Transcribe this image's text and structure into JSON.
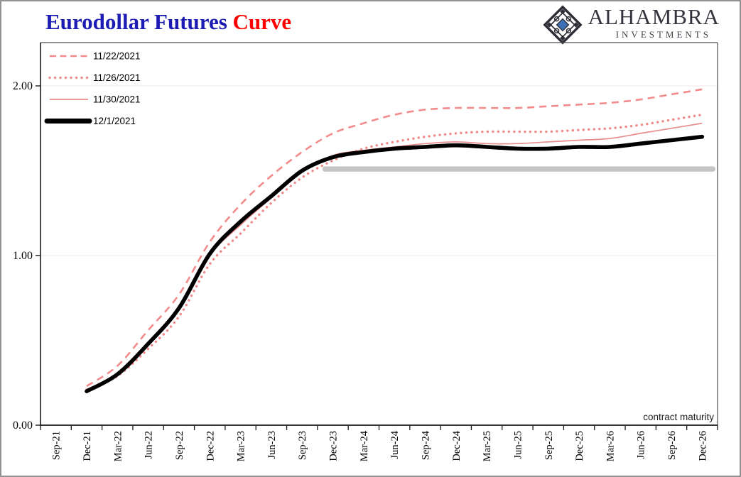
{
  "header": {
    "title_main": "Eurodollar Futures ",
    "title_accent": "Curve",
    "title_main_color": "#1c1cb4",
    "title_accent_color": "#fe0000"
  },
  "logo": {
    "name": "ALHAMBRA",
    "subtitle": "INVESTMENTS",
    "icon": "diamond-lattice-icon",
    "icon_accent_color": "#3e6fb5",
    "icon_line_color": "#2d2d36"
  },
  "axis_note": "contract maturity",
  "chart_data": {
    "type": "line",
    "title": "Eurodollar Futures Curve",
    "xlabel": "contract maturity",
    "ylabel": "",
    "ylim": [
      0,
      2.25
    ],
    "yticks": [
      0,
      1,
      2
    ],
    "ytick_labels": [
      "0.00",
      "1.00",
      "2.00"
    ],
    "grid": "faint horizontal gridlines at 1.00 and 2.00",
    "legend_position": "top-left inside plot",
    "x_categories": [
      "Sep-21",
      "Dec-21",
      "Mar-22",
      "Jun-22",
      "Sep-22",
      "Dec-22",
      "Mar-23",
      "Jun-23",
      "Sep-23",
      "Dec-23",
      "Mar-24",
      "Jun-24",
      "Sep-24",
      "Dec-24",
      "Mar-25",
      "Jun-25",
      "Sep-25",
      "Dec-25",
      "Mar-26",
      "Jun-26",
      "Sep-26",
      "Dec-26"
    ],
    "series_start_category": "Dec-21",
    "series": [
      {
        "name": "11/22/2021",
        "style": "dashed",
        "color": "#f28b8b",
        "values": [
          0.23,
          0.35,
          0.56,
          0.77,
          1.08,
          1.3,
          1.47,
          1.61,
          1.72,
          1.78,
          1.83,
          1.86,
          1.87,
          1.87,
          1.87,
          1.88,
          1.89,
          1.9,
          1.92,
          1.95,
          1.98
        ]
      },
      {
        "name": "11/26/2021",
        "style": "dotted",
        "color": "#ef8a8a",
        "values": [
          0.21,
          0.29,
          0.45,
          0.64,
          0.95,
          1.13,
          1.31,
          1.46,
          1.56,
          1.63,
          1.67,
          1.7,
          1.72,
          1.73,
          1.73,
          1.73,
          1.74,
          1.75,
          1.77,
          1.8,
          1.83
        ]
      },
      {
        "name": "11/30/2021",
        "style": "solid-thin",
        "color": "#e88d8d",
        "values": [
          0.21,
          0.3,
          0.47,
          0.68,
          1.0,
          1.18,
          1.34,
          1.49,
          1.59,
          1.62,
          1.64,
          1.66,
          1.67,
          1.66,
          1.66,
          1.67,
          1.68,
          1.69,
          1.72,
          1.75,
          1.78
        ]
      },
      {
        "name": "12/1/2021",
        "style": "solid-thick",
        "color": "#000000",
        "values": [
          0.2,
          0.3,
          0.48,
          0.69,
          1.01,
          1.2,
          1.35,
          1.5,
          1.58,
          1.61,
          1.63,
          1.64,
          1.65,
          1.64,
          1.63,
          1.63,
          1.64,
          1.64,
          1.66,
          1.68,
          1.7
        ]
      }
    ],
    "reference_line": {
      "description": "thick gray horizontal reference line",
      "value": 1.51,
      "from_category": "Dec-23",
      "to_category": "Dec-26",
      "color": "#c5c5c5"
    }
  }
}
